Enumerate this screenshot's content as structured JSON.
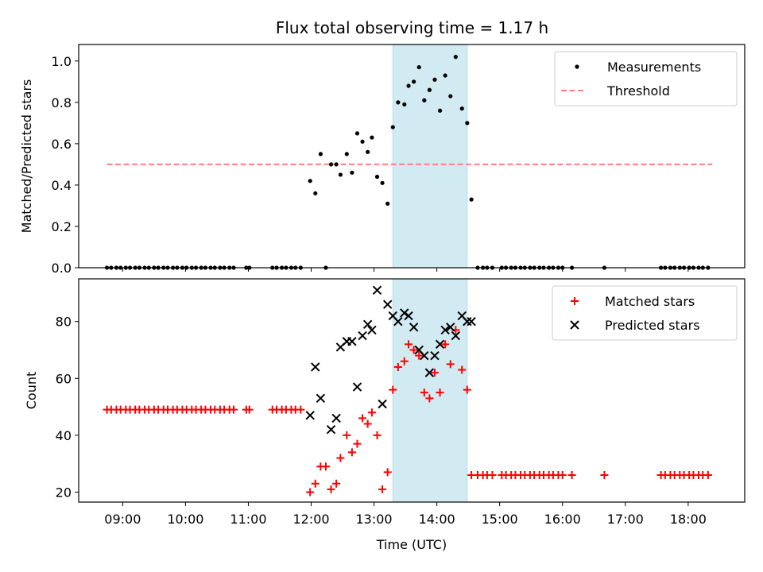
{
  "title": "Flux total observing time = 1.17 h",
  "colors": {
    "measurement": "#000000",
    "threshold": "#ff7f7f",
    "matched": "#ff0000",
    "predicted": "#000000",
    "highlight": "#add8e6"
  },
  "chart_data": [
    {
      "type": "scatter",
      "panel": "top",
      "ylabel": "Matched/Predicted stars",
      "xlabel": "",
      "xlim": [
        "08:18",
        "18:54"
      ],
      "ylim": [
        0,
        1.08
      ],
      "yticks": [
        "0.0",
        "0.2",
        "0.4",
        "0.6",
        "0.8",
        "1.0"
      ],
      "highlight_span": [
        "13:18",
        "14:29"
      ],
      "legend": {
        "position": "top-right",
        "entries": [
          "Measurements",
          "Threshold"
        ]
      },
      "threshold": {
        "name": "Threshold",
        "value": 0.5,
        "x_range": [
          "08:45",
          "18:23"
        ]
      },
      "series": [
        {
          "name": "Measurements",
          "marker": "dot",
          "points": [
            [
              "08:45",
              0
            ],
            [
              "08:49",
              0
            ],
            [
              "08:54",
              0
            ],
            [
              "08:58",
              0
            ],
            [
              "09:03",
              0
            ],
            [
              "09:07",
              0
            ],
            [
              "09:12",
              0
            ],
            [
              "09:16",
              0
            ],
            [
              "09:21",
              0
            ],
            [
              "09:25",
              0
            ],
            [
              "09:30",
              0
            ],
            [
              "09:34",
              0
            ],
            [
              "09:39",
              0
            ],
            [
              "09:43",
              0
            ],
            [
              "09:48",
              0
            ],
            [
              "09:52",
              0
            ],
            [
              "09:57",
              0
            ],
            [
              "10:01",
              0
            ],
            [
              "10:06",
              0
            ],
            [
              "10:10",
              0
            ],
            [
              "10:15",
              0
            ],
            [
              "10:19",
              0
            ],
            [
              "10:24",
              0
            ],
            [
              "10:28",
              0
            ],
            [
              "10:33",
              0
            ],
            [
              "10:37",
              0
            ],
            [
              "10:42",
              0
            ],
            [
              "10:46",
              0
            ],
            [
              "10:58",
              0
            ],
            [
              "11:01",
              0
            ],
            [
              "11:23",
              0
            ],
            [
              "11:27",
              0
            ],
            [
              "11:32",
              0
            ],
            [
              "11:36",
              0
            ],
            [
              "11:41",
              0
            ],
            [
              "11:45",
              0
            ],
            [
              "11:50",
              0
            ],
            [
              "11:59",
              0.42
            ],
            [
              "12:04",
              0.36
            ],
            [
              "12:09",
              0.55
            ],
            [
              "12:14",
              0
            ],
            [
              "12:19",
              0.5
            ],
            [
              "12:24",
              0.5
            ],
            [
              "12:28",
              0.45
            ],
            [
              "12:34",
              0.55
            ],
            [
              "12:39",
              0.46
            ],
            [
              "12:44",
              0.65
            ],
            [
              "12:49",
              0.61
            ],
            [
              "12:54",
              0.56
            ],
            [
              "12:58",
              0.63
            ],
            [
              "13:03",
              0.44
            ],
            [
              "13:08",
              0.41
            ],
            [
              "13:13",
              0.31
            ],
            [
              "13:18",
              0.68
            ],
            [
              "13:23",
              0.8
            ],
            [
              "13:29",
              0.79
            ],
            [
              "13:33",
              0.88
            ],
            [
              "13:38",
              0.9
            ],
            [
              "13:43",
              0.97
            ],
            [
              "13:48",
              0.81
            ],
            [
              "13:53",
              0.86
            ],
            [
              "13:58",
              0.91
            ],
            [
              "14:03",
              0.76
            ],
            [
              "14:08",
              0.93
            ],
            [
              "14:13",
              0.83
            ],
            [
              "14:18",
              1.02
            ],
            [
              "14:24",
              0.77
            ],
            [
              "14:29",
              0.7
            ],
            [
              "14:33",
              0.33
            ],
            [
              "14:39",
              0
            ],
            [
              "14:44",
              0
            ],
            [
              "14:48",
              0
            ],
            [
              "14:53",
              0
            ],
            [
              "15:02",
              0
            ],
            [
              "15:06",
              0
            ],
            [
              "15:11",
              0
            ],
            [
              "15:15",
              0
            ],
            [
              "15:20",
              0
            ],
            [
              "15:24",
              0
            ],
            [
              "15:29",
              0
            ],
            [
              "15:33",
              0
            ],
            [
              "15:38",
              0
            ],
            [
              "15:42",
              0
            ],
            [
              "15:47",
              0
            ],
            [
              "15:51",
              0
            ],
            [
              "15:56",
              0
            ],
            [
              "16:00",
              0
            ],
            [
              "16:09",
              0
            ],
            [
              "16:40",
              0
            ],
            [
              "17:34",
              0
            ],
            [
              "17:38",
              0
            ],
            [
              "17:43",
              0
            ],
            [
              "17:47",
              0
            ],
            [
              "17:52",
              0
            ],
            [
              "17:56",
              0
            ],
            [
              "18:01",
              0
            ],
            [
              "18:05",
              0
            ],
            [
              "18:10",
              0
            ],
            [
              "18:14",
              0
            ],
            [
              "18:19",
              0
            ]
          ]
        }
      ]
    },
    {
      "type": "scatter",
      "panel": "bottom",
      "ylabel": "Count",
      "xlabel": "Time (UTC)",
      "xlim": [
        "08:18",
        "18:54"
      ],
      "ylim": [
        16.5,
        95
      ],
      "yticks": [
        "20",
        "40",
        "60",
        "80"
      ],
      "xticks": [
        "09:00",
        "10:00",
        "11:00",
        "12:00",
        "13:00",
        "14:00",
        "15:00",
        "16:00",
        "17:00",
        "18:00"
      ],
      "highlight_span": [
        "13:18",
        "14:29"
      ],
      "legend": {
        "position": "top-right",
        "entries": [
          "Matched stars",
          "Predicted stars"
        ]
      },
      "series": [
        {
          "name": "Matched stars",
          "marker": "plus",
          "points": [
            [
              "08:45",
              49
            ],
            [
              "08:49",
              49
            ],
            [
              "08:54",
              49
            ],
            [
              "08:58",
              49
            ],
            [
              "09:03",
              49
            ],
            [
              "09:07",
              49
            ],
            [
              "09:12",
              49
            ],
            [
              "09:16",
              49
            ],
            [
              "09:21",
              49
            ],
            [
              "09:25",
              49
            ],
            [
              "09:30",
              49
            ],
            [
              "09:34",
              49
            ],
            [
              "09:39",
              49
            ],
            [
              "09:43",
              49
            ],
            [
              "09:48",
              49
            ],
            [
              "09:52",
              49
            ],
            [
              "09:57",
              49
            ],
            [
              "10:01",
              49
            ],
            [
              "10:06",
              49
            ],
            [
              "10:10",
              49
            ],
            [
              "10:15",
              49
            ],
            [
              "10:19",
              49
            ],
            [
              "10:24",
              49
            ],
            [
              "10:28",
              49
            ],
            [
              "10:33",
              49
            ],
            [
              "10:37",
              49
            ],
            [
              "10:42",
              49
            ],
            [
              "10:46",
              49
            ],
            [
              "10:58",
              49
            ],
            [
              "11:01",
              49
            ],
            [
              "11:23",
              49
            ],
            [
              "11:27",
              49
            ],
            [
              "11:32",
              49
            ],
            [
              "11:36",
              49
            ],
            [
              "11:41",
              49
            ],
            [
              "11:45",
              49
            ],
            [
              "11:50",
              49
            ],
            [
              "11:59",
              20
            ],
            [
              "12:04",
              23
            ],
            [
              "12:09",
              29
            ],
            [
              "12:14",
              29
            ],
            [
              "12:19",
              21
            ],
            [
              "12:24",
              23
            ],
            [
              "12:28",
              32
            ],
            [
              "12:34",
              40
            ],
            [
              "12:39",
              34
            ],
            [
              "12:44",
              37
            ],
            [
              "12:49",
              46
            ],
            [
              "12:54",
              44
            ],
            [
              "12:58",
              48
            ],
            [
              "13:03",
              40
            ],
            [
              "13:08",
              21
            ],
            [
              "13:13",
              27
            ],
            [
              "13:18",
              56
            ],
            [
              "13:23",
              64
            ],
            [
              "13:29",
              66
            ],
            [
              "13:33",
              72
            ],
            [
              "13:38",
              70
            ],
            [
              "13:43",
              68
            ],
            [
              "13:48",
              55
            ],
            [
              "13:53",
              53
            ],
            [
              "13:58",
              62
            ],
            [
              "14:03",
              55
            ],
            [
              "14:08",
              72
            ],
            [
              "14:13",
              65
            ],
            [
              "14:18",
              77
            ],
            [
              "14:24",
              63
            ],
            [
              "14:29",
              56
            ],
            [
              "14:33",
              26
            ],
            [
              "14:39",
              26
            ],
            [
              "14:44",
              26
            ],
            [
              "14:48",
              26
            ],
            [
              "14:53",
              26
            ],
            [
              "15:02",
              26
            ],
            [
              "15:06",
              26
            ],
            [
              "15:11",
              26
            ],
            [
              "15:15",
              26
            ],
            [
              "15:20",
              26
            ],
            [
              "15:24",
              26
            ],
            [
              "15:29",
              26
            ],
            [
              "15:33",
              26
            ],
            [
              "15:38",
              26
            ],
            [
              "15:42",
              26
            ],
            [
              "15:47",
              26
            ],
            [
              "15:51",
              26
            ],
            [
              "15:56",
              26
            ],
            [
              "16:00",
              26
            ],
            [
              "16:09",
              26
            ],
            [
              "16:40",
              26
            ],
            [
              "17:34",
              26
            ],
            [
              "17:38",
              26
            ],
            [
              "17:43",
              26
            ],
            [
              "17:47",
              26
            ],
            [
              "17:52",
              26
            ],
            [
              "17:56",
              26
            ],
            [
              "18:01",
              26
            ],
            [
              "18:05",
              26
            ],
            [
              "18:10",
              26
            ],
            [
              "18:14",
              26
            ],
            [
              "18:19",
              26
            ]
          ]
        },
        {
          "name": "Predicted stars",
          "marker": "x",
          "points": [
            [
              "11:59",
              47
            ],
            [
              "12:04",
              64
            ],
            [
              "12:09",
              53
            ],
            [
              "12:19",
              42
            ],
            [
              "12:24",
              46
            ],
            [
              "12:28",
              71
            ],
            [
              "12:34",
              73
            ],
            [
              "12:39",
              73
            ],
            [
              "12:44",
              57
            ],
            [
              "12:49",
              75
            ],
            [
              "12:54",
              79
            ],
            [
              "12:58",
              77
            ],
            [
              "13:03",
              91
            ],
            [
              "13:08",
              51
            ],
            [
              "13:13",
              86
            ],
            [
              "13:18",
              82
            ],
            [
              "13:23",
              80
            ],
            [
              "13:29",
              83
            ],
            [
              "13:33",
              82
            ],
            [
              "13:38",
              78
            ],
            [
              "13:43",
              70
            ],
            [
              "13:48",
              68
            ],
            [
              "13:53",
              62
            ],
            [
              "13:58",
              68
            ],
            [
              "14:03",
              72
            ],
            [
              "14:08",
              77
            ],
            [
              "14:13",
              78
            ],
            [
              "14:18",
              75
            ],
            [
              "14:24",
              82
            ],
            [
              "14:29",
              80
            ],
            [
              "14:33",
              80
            ]
          ]
        }
      ]
    }
  ]
}
